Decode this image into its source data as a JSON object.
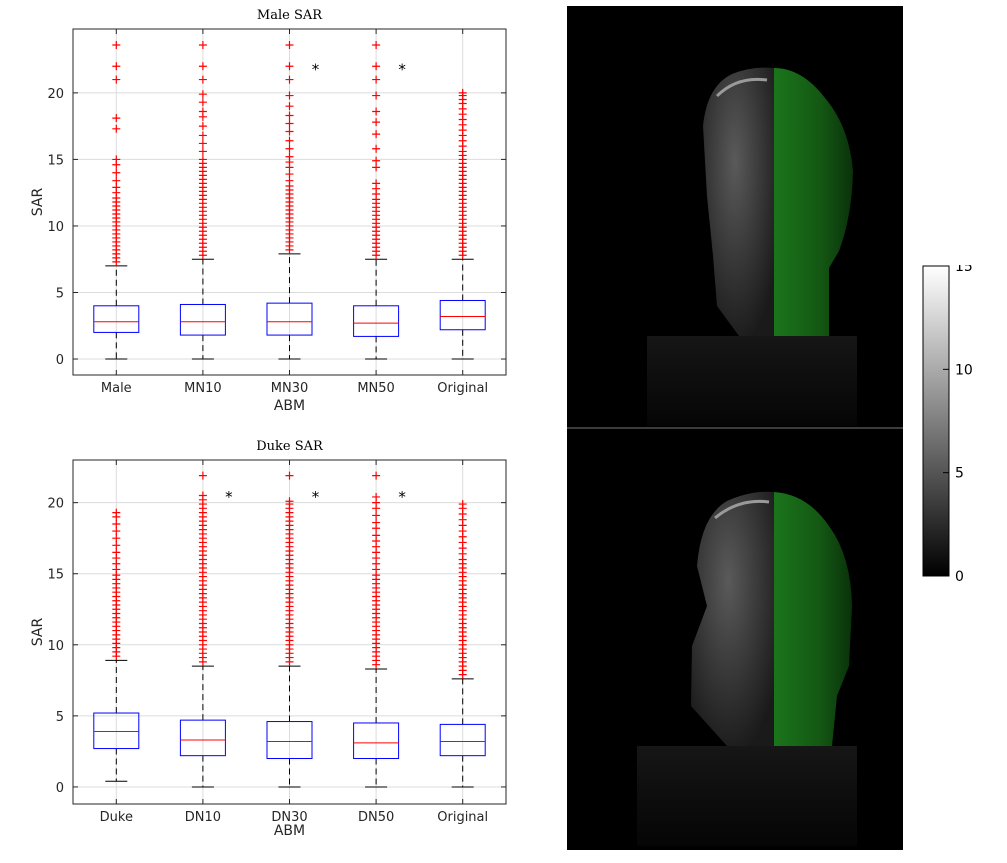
{
  "colors": {
    "box": "#0000ff",
    "median": "#ff0000",
    "outlier": "#ff0000",
    "whisker": "#000000",
    "grid": "#dcdcdc",
    "overlay": "#1ea21e"
  },
  "chart_data": [
    {
      "type": "box",
      "title": "Male SAR",
      "xlabel": "ABM",
      "ylabel": "SAR",
      "ylim": [
        -1.2,
        24.8
      ],
      "yticks": [
        "0",
        "5",
        "10",
        "15",
        "20"
      ],
      "grid": true,
      "categories": [
        "Male",
        "MN10",
        "MN30",
        "MN50",
        "Original"
      ],
      "boxes": [
        {
          "min": 0,
          "q1": 2.0,
          "median": 2.8,
          "q3": 4.0,
          "max": 7.0,
          "outliers": [
            7.3,
            7.6,
            7.9,
            8.2,
            8.5,
            8.8,
            9.1,
            9.4,
            9.7,
            10.0,
            10.3,
            10.6,
            10.9,
            11.2,
            11.5,
            11.8,
            12.1,
            12.5,
            12.9,
            13.4,
            14.0,
            14.6,
            15.0,
            17.3,
            18.1,
            21.0,
            22.0,
            23.6
          ]
        },
        {
          "min": 0,
          "q1": 1.8,
          "median": 2.8,
          "q3": 4.1,
          "max": 7.5,
          "outliers": [
            7.8,
            8.1,
            8.4,
            8.7,
            9.0,
            9.3,
            9.6,
            9.9,
            10.2,
            10.5,
            10.8,
            11.1,
            11.4,
            11.7,
            12.0,
            12.3,
            12.6,
            12.9,
            13.2,
            13.5,
            13.8,
            14.1,
            14.4,
            14.7,
            15.0,
            15.6,
            16.2,
            16.8,
            17.5,
            18.2,
            18.6,
            19.3,
            19.9,
            21.0,
            22.0,
            23.6
          ]
        },
        {
          "min": 0,
          "q1": 1.8,
          "median": 2.8,
          "q3": 4.2,
          "max": 7.9,
          "outliers": [
            8.2,
            8.5,
            8.8,
            9.1,
            9.4,
            9.7,
            10.0,
            10.3,
            10.6,
            10.9,
            11.2,
            11.5,
            11.8,
            12.1,
            12.4,
            12.7,
            13.0,
            13.4,
            13.9,
            14.4,
            14.8,
            15.2,
            15.8,
            16.4,
            17.1,
            17.7,
            18.3,
            19.0,
            19.8,
            21.0,
            22.0,
            23.6
          ]
        },
        {
          "min": 0,
          "q1": 1.7,
          "median": 2.7,
          "q3": 4.0,
          "max": 7.5,
          "outliers": [
            7.8,
            8.1,
            8.4,
            8.7,
            9.0,
            9.3,
            9.6,
            9.9,
            10.2,
            10.5,
            10.8,
            11.1,
            11.4,
            11.7,
            12.0,
            12.4,
            12.8,
            13.2,
            14.4,
            14.9,
            15.8,
            16.9,
            17.8,
            18.6,
            19.8,
            21.0,
            22.0,
            23.6
          ]
        },
        {
          "min": 0,
          "q1": 2.2,
          "median": 3.2,
          "q3": 4.4,
          "max": 7.5,
          "outliers": [
            7.8,
            8.1,
            8.4,
            8.7,
            9.0,
            9.3,
            9.6,
            9.9,
            10.2,
            10.5,
            10.8,
            11.1,
            11.4,
            11.7,
            12.0,
            12.3,
            12.6,
            12.9,
            13.2,
            13.5,
            13.8,
            14.1,
            14.4,
            14.7,
            15.0,
            15.3,
            15.6,
            16.0,
            16.4,
            16.8,
            17.2,
            17.6,
            18.0,
            18.4,
            18.8,
            19.2,
            19.5,
            19.8,
            20.0
          ]
        }
      ],
      "annotations": [
        {
          "text": "*",
          "x": 2.3,
          "y": 22.0
        },
        {
          "text": "*",
          "x": 3.3,
          "y": 22.0
        }
      ]
    },
    {
      "type": "box",
      "title": "Duke SAR",
      "xlabel": "ABM",
      "ylabel": "SAR",
      "ylim": [
        -1.2,
        23.0
      ],
      "yticks": [
        "0",
        "5",
        "10",
        "15",
        "20"
      ],
      "grid": true,
      "categories": [
        "Duke",
        "DN10",
        "DN30",
        "DN50",
        "Original"
      ],
      "boxes": [
        {
          "min": 0.4,
          "q1": 2.7,
          "median": 3.9,
          "q3": 5.2,
          "max": 8.9,
          "outliers": [
            9.2,
            9.5,
            9.8,
            10.1,
            10.4,
            10.7,
            11.0,
            11.3,
            11.6,
            11.9,
            12.2,
            12.5,
            12.8,
            13.1,
            13.4,
            13.7,
            14.0,
            14.3,
            14.6,
            14.9,
            15.3,
            15.7,
            16.1,
            16.5,
            17.0,
            17.5,
            18.0,
            18.5,
            19.0,
            19.3
          ]
        },
        {
          "min": 0,
          "q1": 2.2,
          "median": 3.3,
          "q3": 4.7,
          "max": 8.5,
          "outliers": [
            8.8,
            9.1,
            9.4,
            9.7,
            10.0,
            10.3,
            10.6,
            10.9,
            11.2,
            11.5,
            11.8,
            12.1,
            12.4,
            12.7,
            13.0,
            13.3,
            13.6,
            13.9,
            14.2,
            14.5,
            14.8,
            15.1,
            15.4,
            15.7,
            16.0,
            16.3,
            16.6,
            16.9,
            17.2,
            17.5,
            17.8,
            18.1,
            18.4,
            18.7,
            19.0,
            19.3,
            19.6,
            19.9,
            20.2,
            20.5,
            21.9
          ]
        },
        {
          "min": 0,
          "q1": 2.0,
          "median": 3.2,
          "q3": 4.6,
          "max": 8.5,
          "outliers": [
            8.8,
            9.1,
            9.4,
            9.7,
            10.0,
            10.3,
            10.6,
            10.9,
            11.2,
            11.5,
            11.8,
            12.1,
            12.4,
            12.7,
            13.0,
            13.3,
            13.6,
            13.9,
            14.2,
            14.5,
            14.8,
            15.1,
            15.4,
            15.7,
            16.0,
            16.3,
            16.6,
            16.9,
            17.2,
            17.5,
            17.8,
            18.1,
            18.4,
            18.7,
            19.0,
            19.3,
            19.6,
            19.9,
            20.1,
            21.9
          ]
        },
        {
          "min": 0,
          "q1": 2.0,
          "median": 3.1,
          "q3": 4.5,
          "max": 8.3,
          "outliers": [
            8.6,
            8.9,
            9.2,
            9.5,
            9.8,
            10.1,
            10.4,
            10.7,
            11.0,
            11.3,
            11.6,
            11.9,
            12.2,
            12.5,
            12.8,
            13.1,
            13.4,
            13.7,
            14.0,
            14.3,
            14.6,
            14.9,
            15.3,
            15.7,
            16.1,
            16.5,
            16.9,
            17.3,
            17.7,
            18.2,
            18.6,
            19.1,
            19.6,
            20.0,
            20.4,
            21.9
          ]
        },
        {
          "min": 0,
          "q1": 2.2,
          "median": 3.2,
          "q3": 4.4,
          "max": 7.6,
          "outliers": [
            7.9,
            8.2,
            8.5,
            8.8,
            9.1,
            9.4,
            9.7,
            10.0,
            10.3,
            10.6,
            10.9,
            11.2,
            11.5,
            11.8,
            12.1,
            12.4,
            12.7,
            13.0,
            13.3,
            13.6,
            13.9,
            14.2,
            14.5,
            14.8,
            15.1,
            15.4,
            15.7,
            16.0,
            16.4,
            16.8,
            17.2,
            17.6,
            18.0,
            18.4,
            18.8,
            19.2,
            19.6,
            19.9
          ]
        }
      ],
      "annotations": [
        {
          "text": "*",
          "x": 1.3,
          "y": 20.6
        },
        {
          "text": "*",
          "x": 2.3,
          "y": 20.6
        },
        {
          "text": "*",
          "x": 3.3,
          "y": 20.6
        }
      ]
    }
  ],
  "colorbar": {
    "range": [
      0,
      15
    ],
    "ticks": [
      "0",
      "5",
      "10",
      "15"
    ],
    "colormap": "gray"
  }
}
